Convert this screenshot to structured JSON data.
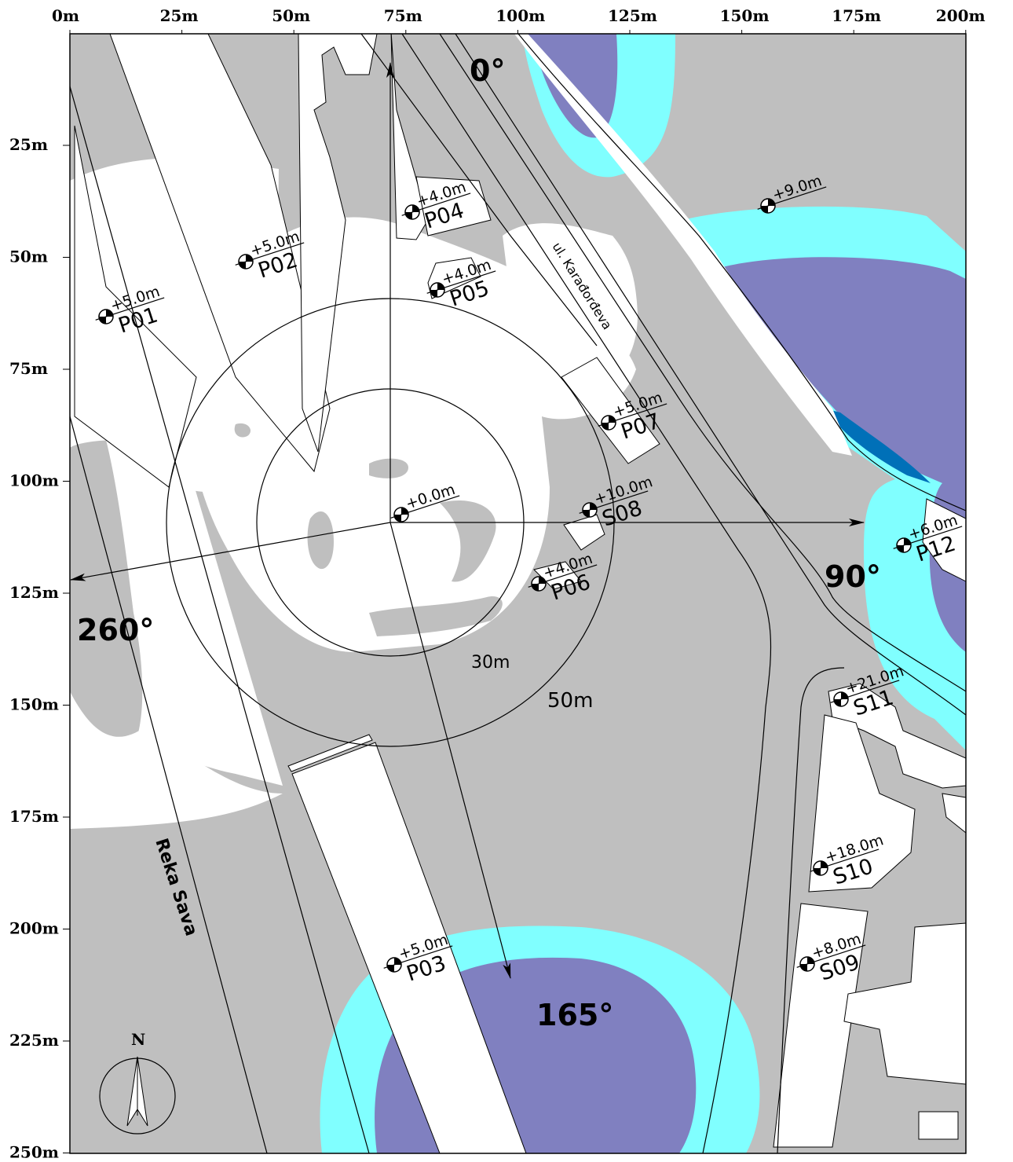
{
  "map": {
    "x_axis_labels": [
      "0m",
      "25m",
      "50m",
      "75m",
      "100m",
      "125m",
      "150m",
      "175m",
      "200m"
    ],
    "y_axis_labels": [
      "25m",
      "50m",
      "75m",
      "100m",
      "125m",
      "150m",
      "175m",
      "200m",
      "225m",
      "250m"
    ],
    "north_label": "N",
    "street_label": "ul. Karađorđeva",
    "river_label": "Reka Sava",
    "ring_labels": [
      "30m",
      "50m"
    ],
    "bearings": [
      "0°",
      "90°",
      "165°",
      "260°"
    ],
    "stations": [
      {
        "code": "P01",
        "elevation": "+5.0m"
      },
      {
        "code": "P02",
        "elevation": "+5.0m"
      },
      {
        "code": "P03",
        "elevation": "+5.0m"
      },
      {
        "code": "P04",
        "elevation": "+4.0m"
      },
      {
        "code": "P05",
        "elevation": "+4.0m"
      },
      {
        "code": "P06",
        "elevation": "+4.0m"
      },
      {
        "code": "P07",
        "elevation": "+5.0m"
      },
      {
        "code": "S08",
        "elevation": "+10.0m"
      },
      {
        "code": "S09",
        "elevation": "+8.0m"
      },
      {
        "code": "S10",
        "elevation": "+18.0m"
      },
      {
        "code": "S11",
        "elevation": "+21.0m"
      },
      {
        "code": "P12",
        "elevation": "+6.0m"
      },
      {
        "code": "",
        "elevation": "+9.0m"
      },
      {
        "code": "",
        "elevation": "+0.0m"
      }
    ],
    "colors": {
      "gray_zone": "#bfbfbf",
      "white_zone": "#ffffff",
      "cyan_zone": "#80ffff",
      "purple_zone": "#8080c0",
      "dark_blue_zone": "#0070b8"
    }
  }
}
